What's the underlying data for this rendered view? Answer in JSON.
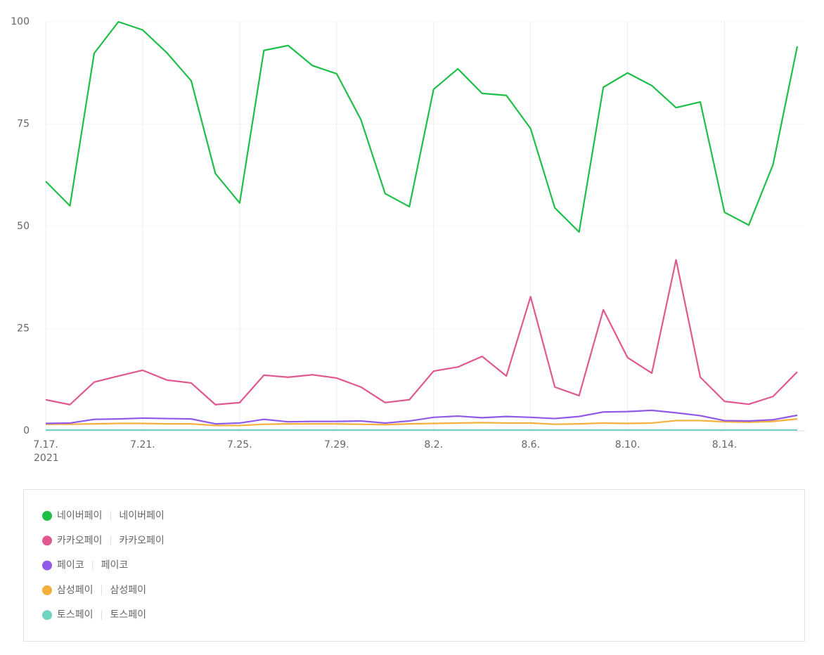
{
  "chart_data": {
    "type": "line",
    "categories": [
      "7.17.",
      null,
      null,
      null,
      "7.21.",
      null,
      null,
      null,
      "7.25.",
      null,
      null,
      null,
      "7.29.",
      null,
      null,
      null,
      "8.2.",
      null,
      null,
      null,
      "8.6.",
      null,
      null,
      null,
      "8.10.",
      null,
      null,
      null,
      "8.14.",
      null,
      null,
      null
    ],
    "x_sublabel": "2021",
    "ylim": [
      0,
      100
    ],
    "yticks": [
      0,
      25,
      50,
      75,
      100
    ],
    "grid": true,
    "series": [
      {
        "name": "네이버페이",
        "color": "#1dbf48",
        "values": [
          61,
          55,
          92.3,
          100,
          98,
          92.4,
          85.6,
          62.9,
          55.7,
          93,
          94.2,
          89.3,
          87.3,
          76.1,
          58,
          54.8,
          83.5,
          88.5,
          82.5,
          82,
          73.9,
          54.5,
          48.6,
          84,
          87.5,
          84.4,
          79,
          80.4,
          53.4,
          50.3,
          65.1,
          94
        ]
      },
      {
        "name": "카카오페이",
        "color": "#e0588f",
        "values": [
          7.6,
          6.4,
          11.9,
          13.4,
          14.8,
          12.4,
          11.7,
          6.4,
          6.9,
          13.6,
          13.1,
          13.7,
          12.9,
          10.7,
          6.9,
          7.6,
          14.6,
          15.6,
          18.2,
          13.4,
          32.8,
          10.7,
          8.6,
          29.6,
          17.9,
          14.1,
          41.8,
          13.1,
          7.2,
          6.5,
          8.4,
          14.4
        ]
      },
      {
        "name": "페이코",
        "color": "#9159e8",
        "values": [
          1.8,
          1.9,
          2.8,
          2.9,
          3.1,
          3.0,
          2.9,
          1.7,
          1.9,
          2.8,
          2.2,
          2.3,
          2.3,
          2.4,
          1.9,
          2.4,
          3.3,
          3.6,
          3.2,
          3.5,
          3.3,
          3.0,
          3.5,
          4.6,
          4.7,
          5.0,
          4.4,
          3.7,
          2.5,
          2.4,
          2.7,
          3.8
        ]
      },
      {
        "name": "삼성페이",
        "color": "#f4b03c",
        "values": [
          1.6,
          1.6,
          1.7,
          1.8,
          1.8,
          1.7,
          1.7,
          1.3,
          1.3,
          1.6,
          1.7,
          1.7,
          1.7,
          1.6,
          1.5,
          1.7,
          1.8,
          1.9,
          2.0,
          1.9,
          1.9,
          1.6,
          1.7,
          1.9,
          1.8,
          1.9,
          2.5,
          2.5,
          2.2,
          2.1,
          2.3,
          2.9
        ]
      },
      {
        "name": "토스페이",
        "color": "#6fd3c1",
        "values": [
          0.2,
          0.2,
          0.2,
          0.2,
          0.2,
          0.2,
          0.2,
          0.2,
          0.2,
          0.2,
          0.2,
          0.2,
          0.2,
          0.2,
          0.2,
          0.2,
          0.2,
          0.2,
          0.2,
          0.2,
          0.2,
          0.2,
          0.2,
          0.2,
          0.2,
          0.2,
          0.2,
          0.2,
          0.2,
          0.2,
          0.2,
          0.2
        ]
      }
    ]
  }
}
